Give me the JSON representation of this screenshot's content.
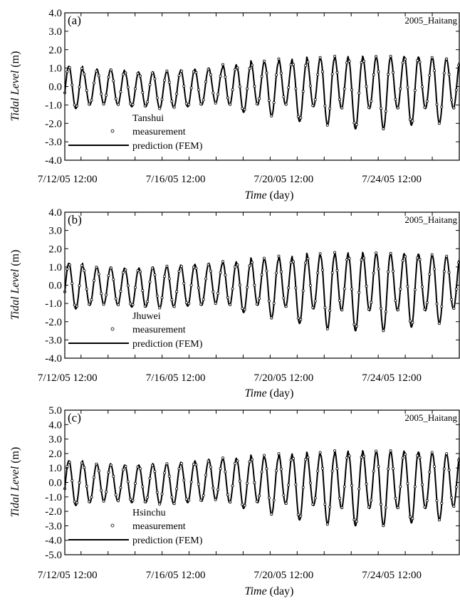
{
  "chart_data": [
    {
      "type": "line",
      "panel_tag": "(a)",
      "storm_label": "2005_Haitang",
      "station": "Tanshui",
      "ylabel_italic": "Tidal Level",
      "ylabel_unit": " (m)",
      "xlabel_italic": "Time",
      "xlabel_unit": " (day)",
      "ylim": [
        -4,
        4
      ],
      "yticks": [
        "4.0",
        "3.0",
        "2.0",
        "1.0",
        "0.0",
        "-1.0",
        "-2.0",
        "-3.0",
        "-4.0"
      ],
      "xlim_days": [
        12.4,
        27.0
      ],
      "xticks": [
        {
          "label": "7/12/05 12:00",
          "day": 12.5
        },
        {
          "label": "7/16/05 12:00",
          "day": 16.5
        },
        {
          "label": "7/20/05 12:00",
          "day": 20.5
        },
        {
          "label": "7/24/05 12:00",
          "day": 24.5
        }
      ],
      "highs": [
        1.1,
        0.85,
        0.95,
        0.9,
        0.8,
        0.75,
        0.8,
        0.85,
        0.9,
        0.95,
        1.0,
        1.2,
        1.1,
        1.4,
        1.3,
        1.5,
        1.3,
        1.6,
        1.5,
        1.65,
        1.5,
        1.65,
        1.55,
        1.65,
        1.6,
        1.6,
        1.55,
        1.5
      ],
      "lows": [
        -1.2,
        -1.0,
        -0.95,
        -1.0,
        -1.1,
        -1.1,
        -1.2,
        -1.15,
        -1.1,
        -1.0,
        -0.9,
        -1.0,
        -1.4,
        -1.0,
        -1.6,
        -1.0,
        -1.9,
        -1.1,
        -2.1,
        -1.2,
        -2.3,
        -1.2,
        -2.3,
        -1.2,
        -2.1,
        -1.2,
        -2.0,
        -1.2
      ],
      "legend": {
        "station": "Tanshui",
        "measurement": "measurement",
        "prediction": "prediction (FEM)"
      }
    },
    {
      "type": "line",
      "panel_tag": "(b)",
      "storm_label": "2005_Haitang",
      "station": "Jhuwei",
      "ylabel_italic": "Tidal Level",
      "ylabel_unit": " (m)",
      "xlabel_italic": "Time",
      "xlabel_unit": " (day)",
      "ylim": [
        -4,
        4
      ],
      "yticks": [
        "4.0",
        "3.0",
        "2.0",
        "1.0",
        "0.0",
        "-1.0",
        "-2.0",
        "-3.0",
        "-4.0"
      ],
      "xlim_days": [
        12.4,
        27.0
      ],
      "xticks": [
        {
          "label": "7/12/05 12:00",
          "day": 12.5
        },
        {
          "label": "7/16/05 12:00",
          "day": 16.5
        },
        {
          "label": "7/20/05 12:00",
          "day": 20.5
        },
        {
          "label": "7/24/05 12:00",
          "day": 24.5
        }
      ],
      "highs": [
        1.2,
        1.0,
        1.0,
        0.95,
        0.9,
        0.95,
        1.0,
        1.05,
        1.1,
        1.15,
        1.2,
        1.3,
        1.2,
        1.5,
        1.4,
        1.6,
        1.4,
        1.75,
        1.6,
        1.8,
        1.6,
        1.8,
        1.7,
        1.75,
        1.7,
        1.7,
        1.6,
        1.6
      ],
      "lows": [
        -1.3,
        -1.1,
        -1.05,
        -1.1,
        -1.2,
        -1.2,
        -1.25,
        -1.2,
        -1.15,
        -1.1,
        -1.0,
        -1.1,
        -1.5,
        -1.1,
        -1.8,
        -1.2,
        -2.1,
        -1.3,
        -2.4,
        -1.4,
        -2.5,
        -1.4,
        -2.5,
        -1.4,
        -2.3,
        -1.4,
        -2.1,
        -1.3
      ],
      "legend": {
        "station": "Jhuwei",
        "measurement": "measurement",
        "prediction": "prediction (FEM)"
      }
    },
    {
      "type": "line",
      "panel_tag": "(c)",
      "storm_label": "2005_Haitang",
      "station": "Hsinchu",
      "ylabel_italic": "Tidal Level",
      "ylabel_unit": " (m)",
      "xlabel_italic": "Time",
      "xlabel_unit": " (day)",
      "ylim": [
        -5,
        5
      ],
      "yticks": [
        "5.0",
        "4.0",
        "3.0",
        "2.0",
        "1.0",
        "0.0",
        "-1.0",
        "-2.0",
        "-3.0",
        "-4.0",
        "-5.0"
      ],
      "xlim_days": [
        12.4,
        27.0
      ],
      "xticks": [
        {
          "label": "7/12/05 12:00",
          "day": 12.5
        },
        {
          "label": "7/16/05 12:00",
          "day": 16.5
        },
        {
          "label": "7/20/05 12:00",
          "day": 20.5
        },
        {
          "label": "7/24/05 12:00",
          "day": 24.5
        }
      ],
      "highs": [
        1.5,
        1.3,
        1.3,
        1.2,
        1.2,
        1.2,
        1.3,
        1.3,
        1.4,
        1.5,
        1.6,
        1.7,
        1.6,
        1.9,
        1.7,
        2.0,
        1.8,
        2.1,
        1.9,
        2.2,
        2.0,
        2.2,
        2.1,
        2.2,
        2.1,
        2.1,
        2.0,
        2.0
      ],
      "lows": [
        -1.6,
        -1.4,
        -1.3,
        -1.3,
        -1.4,
        -1.4,
        -1.5,
        -1.5,
        -1.4,
        -1.3,
        -1.2,
        -1.4,
        -1.8,
        -1.4,
        -2.2,
        -1.5,
        -2.6,
        -1.6,
        -2.9,
        -1.8,
        -3.0,
        -1.8,
        -3.0,
        -1.8,
        -2.8,
        -1.8,
        -2.6,
        -1.7
      ],
      "legend": {
        "station": "Hsinchu",
        "measurement": "measurement",
        "prediction": "prediction (FEM)"
      }
    }
  ]
}
